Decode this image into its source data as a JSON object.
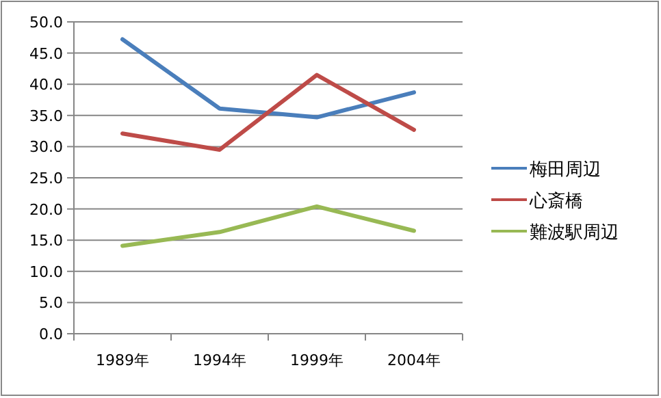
{
  "chart_data": {
    "type": "line",
    "categories": [
      "1989年",
      "1994年",
      "1999年",
      "2004年"
    ],
    "series": [
      {
        "name": "梅田周辺",
        "color": "#4a7ebb",
        "values": [
          47.2,
          36.1,
          34.7,
          38.7
        ]
      },
      {
        "name": "心斎橋",
        "color": "#be4b48",
        "values": [
          32.1,
          29.5,
          41.5,
          32.7
        ]
      },
      {
        "name": "難波駅周辺",
        "color": "#98b954",
        "values": [
          14.1,
          16.3,
          20.4,
          16.5
        ]
      }
    ],
    "ylim": [
      0,
      50
    ],
    "yticks": [
      {
        "value": 0,
        "label": "0.0"
      },
      {
        "value": 5,
        "label": "5.0"
      },
      {
        "value": 10,
        "label": "10.0"
      },
      {
        "value": 15,
        "label": "15.0"
      },
      {
        "value": 20,
        "label": "20.0"
      },
      {
        "value": 25,
        "label": "25.0"
      },
      {
        "value": 30,
        "label": "30.0"
      },
      {
        "value": 35,
        "label": "35.0"
      },
      {
        "value": 40,
        "label": "40.0"
      },
      {
        "value": 45,
        "label": "45.0"
      },
      {
        "value": 50,
        "label": "50.0"
      }
    ],
    "grid": "y",
    "legend": "right",
    "marker": "none",
    "line_style": "solid"
  }
}
